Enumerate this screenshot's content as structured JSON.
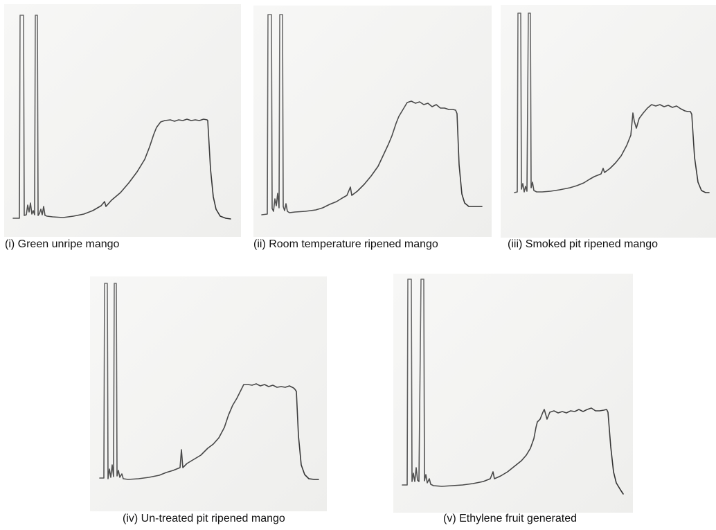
{
  "panels": [
    {
      "id": "i",
      "caption": "(i) Green unripe mango"
    },
    {
      "id": "ii",
      "caption": "(ii) Room temperature ripened mango"
    },
    {
      "id": "iii",
      "caption": "(iii) Smoked pit ripened mango"
    },
    {
      "id": "iv",
      "caption": "(iv) Un-treated pit ripened mango"
    },
    {
      "id": "v",
      "caption": "(v) Ethylene fruit generated"
    }
  ]
}
